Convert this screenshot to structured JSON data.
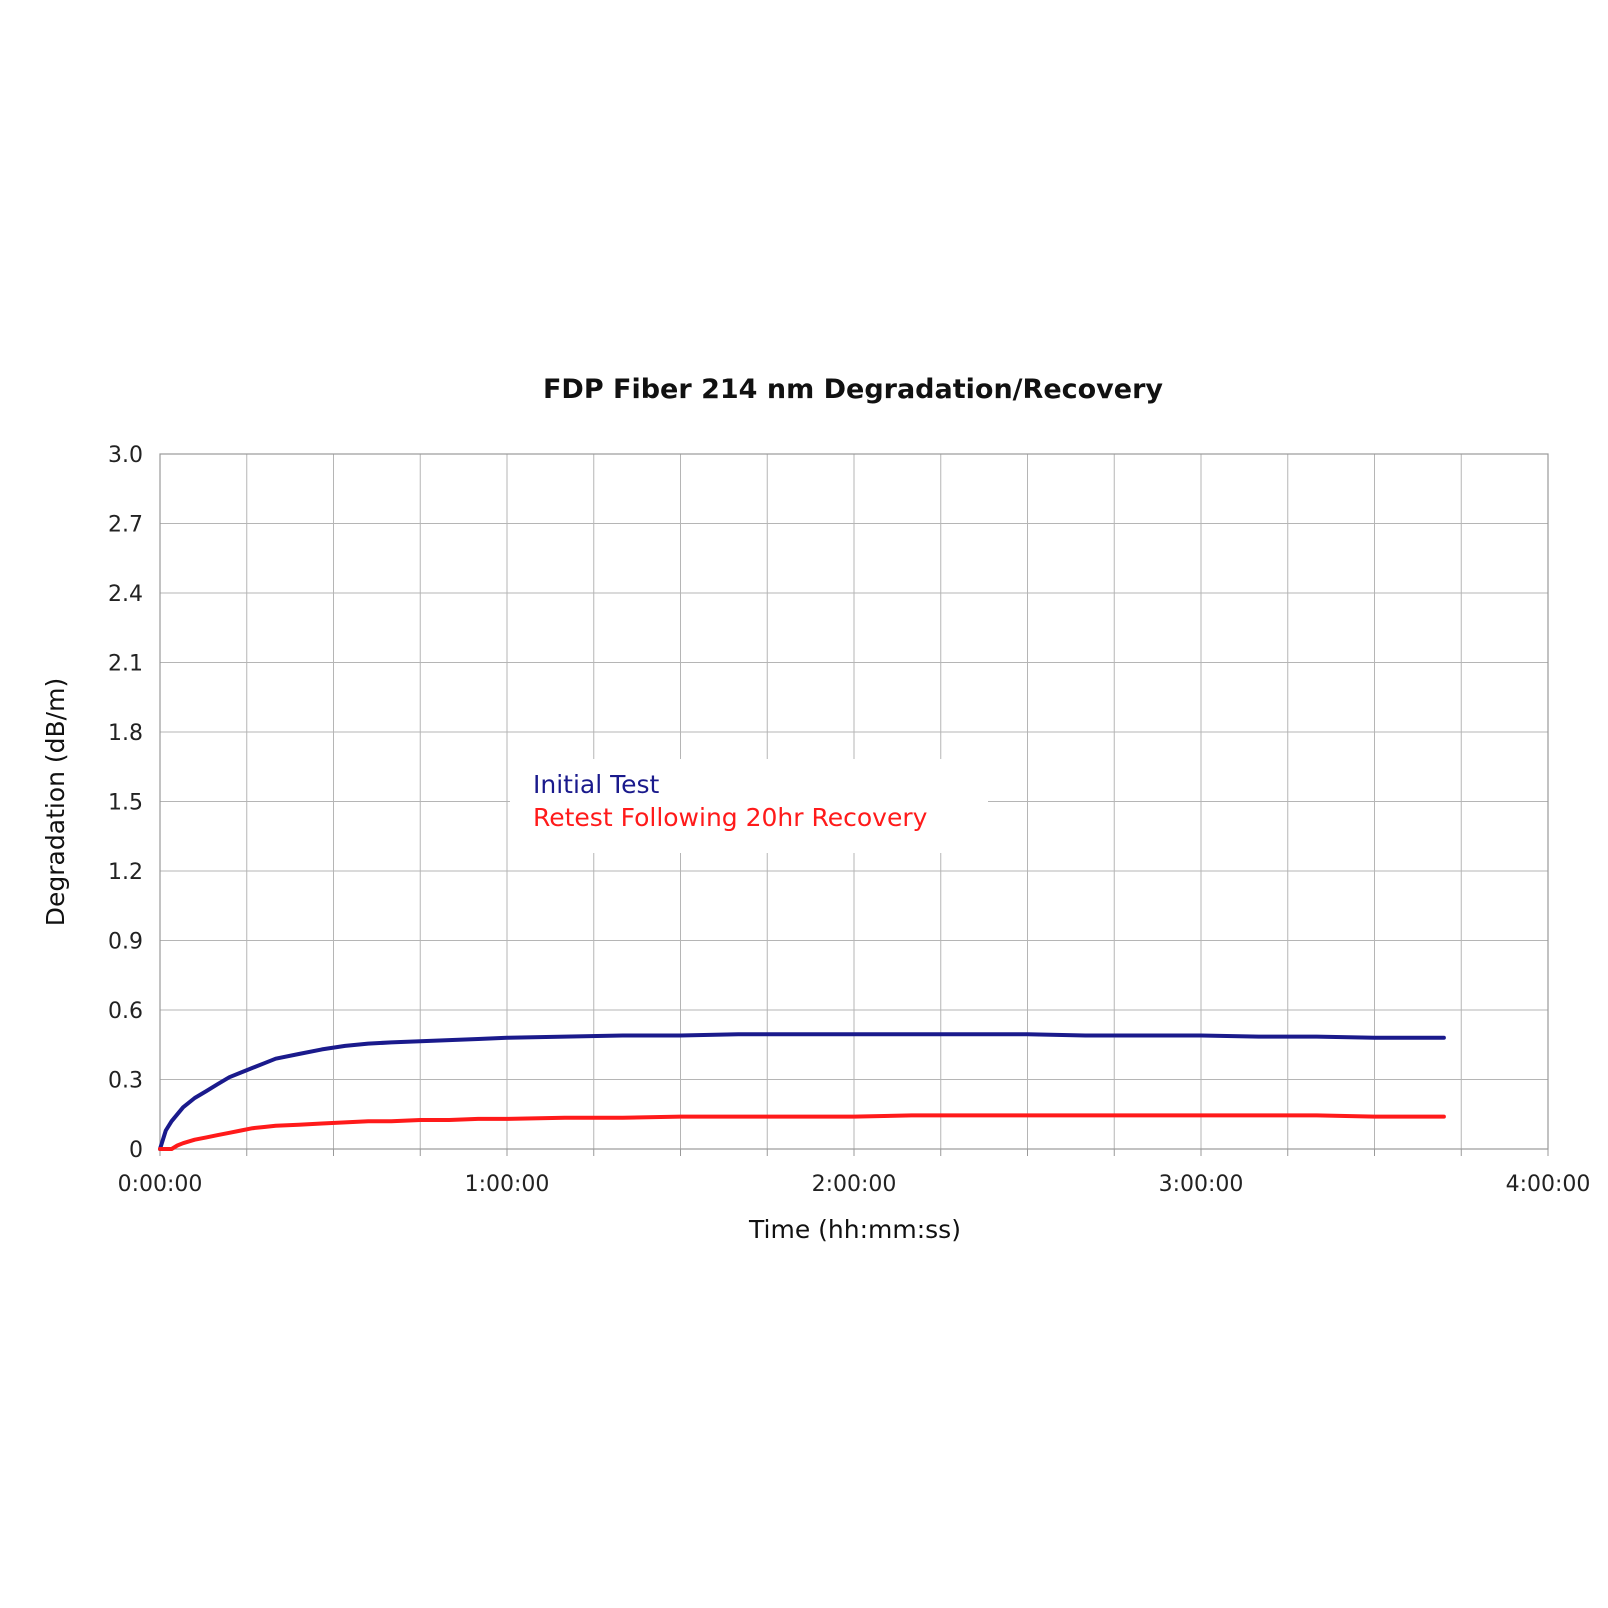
{
  "chart_data": {
    "type": "line",
    "title": "FDP Fiber 214 nm Degradation/Recovery",
    "xlabel": "Time (hh:mm:ss)",
    "ylabel": "Degradation (dB/m)",
    "xlim": [
      0,
      240
    ],
    "ylim": [
      0,
      3.0
    ],
    "x_unit": "minutes",
    "x_ticks": [
      0,
      60,
      120,
      180,
      240
    ],
    "x_tick_labels": [
      "0:00:00",
      "1:00:00",
      "2:00:00",
      "3:00:00",
      "4:00:00"
    ],
    "x_minor_gridlines": 15,
    "y_ticks": [
      0,
      0.3,
      0.6,
      0.9,
      1.2,
      1.5,
      1.8,
      2.1,
      2.4,
      2.7,
      3.0
    ],
    "y_tick_labels": [
      "0",
      "0.3",
      "0.6",
      "0.9",
      "1.2",
      "1.5",
      "1.8",
      "2.1",
      "2.4",
      "2.7",
      "3.0"
    ],
    "grid": true,
    "legend_position": "center-left",
    "series": [
      {
        "name": "Initial Test",
        "color": "#1a1a8c",
        "x": [
          0,
          1,
          2,
          3,
          4,
          6,
          8,
          10,
          12,
          14,
          16,
          18,
          20,
          24,
          28,
          32,
          36,
          40,
          45,
          50,
          55,
          60,
          70,
          80,
          90,
          100,
          110,
          120,
          130,
          140,
          150,
          160,
          170,
          180,
          190,
          200,
          210,
          220,
          222
        ],
        "values": [
          0,
          0.08,
          0.12,
          0.15,
          0.18,
          0.22,
          0.25,
          0.28,
          0.31,
          0.33,
          0.35,
          0.37,
          0.39,
          0.41,
          0.43,
          0.445,
          0.455,
          0.46,
          0.465,
          0.47,
          0.475,
          0.48,
          0.485,
          0.49,
          0.49,
          0.495,
          0.495,
          0.495,
          0.495,
          0.495,
          0.495,
          0.49,
          0.49,
          0.49,
          0.485,
          0.485,
          0.48,
          0.48,
          0.48
        ]
      },
      {
        "name": "Retest Following 20hr Recovery",
        "color": "#ff1a1a",
        "x": [
          0,
          2,
          3,
          4,
          6,
          8,
          10,
          12,
          14,
          16,
          18,
          20,
          24,
          28,
          32,
          36,
          40,
          45,
          50,
          55,
          60,
          70,
          80,
          90,
          100,
          110,
          120,
          130,
          140,
          150,
          160,
          170,
          180,
          190,
          200,
          210,
          220,
          222
        ],
        "values": [
          0,
          0,
          0.015,
          0.025,
          0.04,
          0.05,
          0.06,
          0.07,
          0.08,
          0.09,
          0.095,
          0.1,
          0.105,
          0.11,
          0.115,
          0.12,
          0.12,
          0.125,
          0.125,
          0.13,
          0.13,
          0.135,
          0.135,
          0.14,
          0.14,
          0.14,
          0.14,
          0.145,
          0.145,
          0.145,
          0.145,
          0.145,
          0.145,
          0.145,
          0.145,
          0.14,
          0.14,
          0.14
        ]
      }
    ]
  }
}
